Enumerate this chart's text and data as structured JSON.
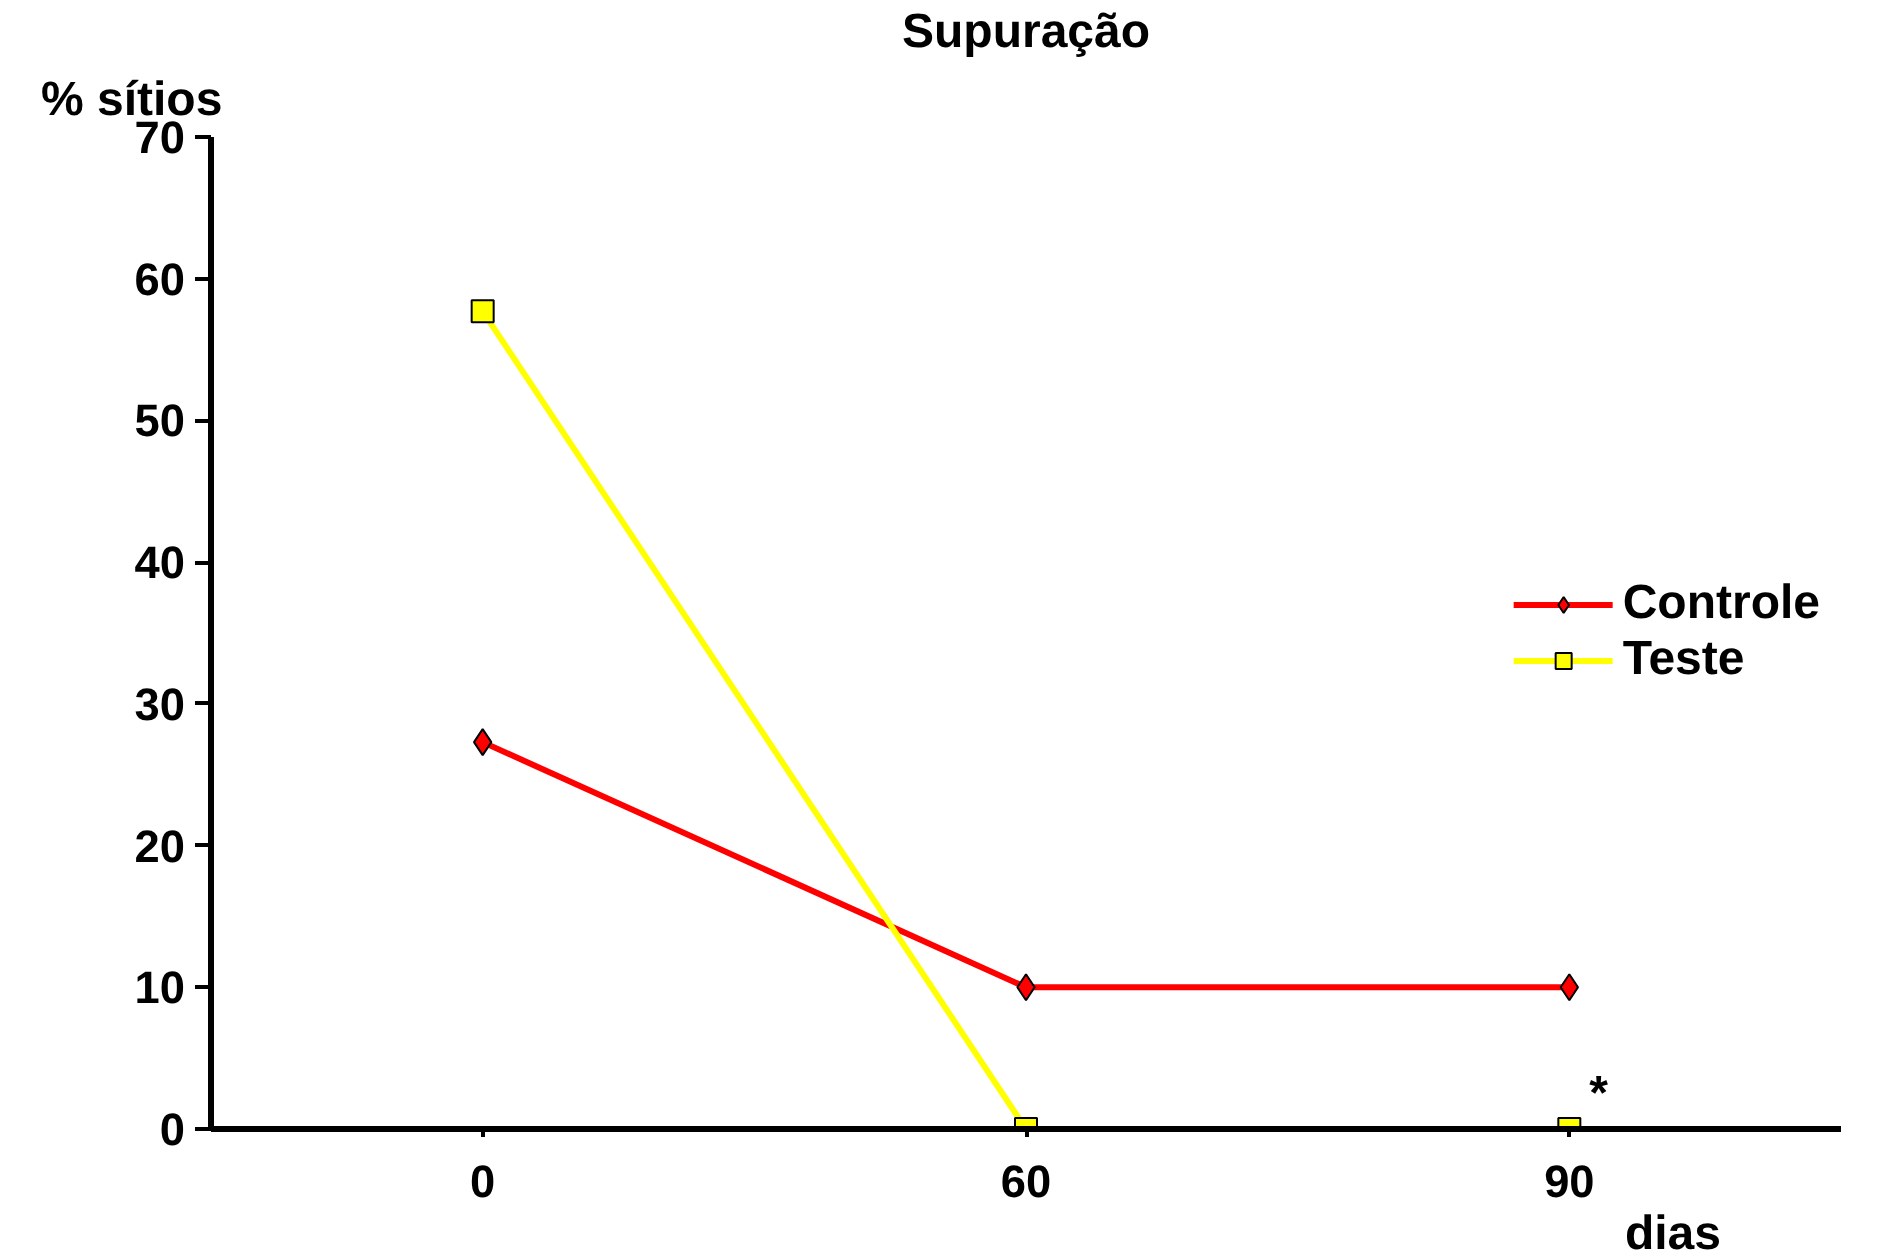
{
  "chart_data": {
    "type": "line",
    "title": "Supuração",
    "ylabel": "% sítios",
    "xlabel": "dias",
    "categories": [
      "0",
      "60",
      "90"
    ],
    "series": [
      {
        "name": "Controle",
        "color": "#ff0000",
        "marker": "diamond",
        "values": [
          27.3,
          10,
          10
        ]
      },
      {
        "name": "Teste",
        "color": "#ffff00",
        "marker": "square",
        "values": [
          57.7,
          0,
          0
        ]
      }
    ],
    "ylim": [
      0,
      70
    ],
    "yticks": [
      0,
      10,
      20,
      30,
      40,
      50,
      60,
      70
    ],
    "annotations": [
      {
        "text": "*",
        "x": "90",
        "y": 0
      }
    ],
    "legend": "right",
    "grid": false
  }
}
